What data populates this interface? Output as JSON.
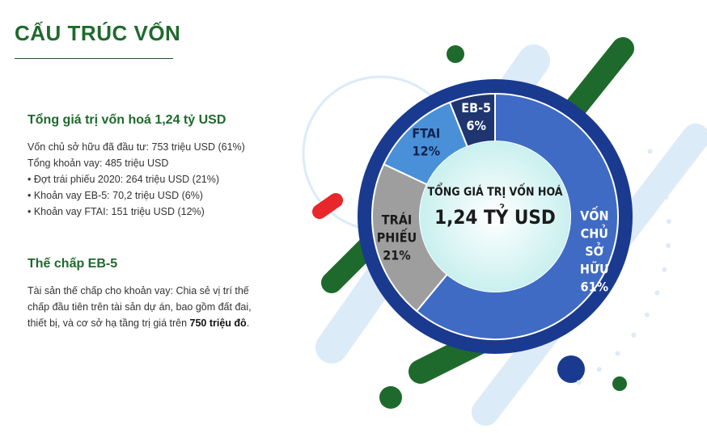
{
  "page": {
    "title": "CẤU TRÚC VỐN"
  },
  "capitalization": {
    "heading": "Tổng giá trị vốn hoá 1,24 tỷ USD",
    "lines": [
      "Vốn chủ sở hữu đã đầu tư: 753 triệu USD (61%)",
      "Tổng khoản vay: 485 triệu USD",
      "• Đợt trái phiếu 2020: 264 triệu USD (21%)",
      "• Khoản vay EB-5: 70,2 triệu USD (6%)",
      "• Khoản vay FTAI: 151 triệu USD (12%)"
    ]
  },
  "collateral": {
    "heading": "Thế chấp EB-5",
    "text_before": "Tài sản thế chấp cho khoản vay: Chia sẻ vị trí thế chấp đầu tiên trên tài sản dự án, bao gồm đất đai, thiết bị, và cơ sở hạ tầng trị giá trên ",
    "text_bold": "750 triệu đô",
    "text_after": "."
  },
  "colors": {
    "brand_green": "#1e6a2c",
    "navy": "#1a3a8f",
    "equity_blue": "#3f6bc4",
    "bonds_gray": "#9e9e9e",
    "ftai_blue": "#4a90d9",
    "eb5_navy": "#1e3570",
    "center_teal": "#c9f0ef",
    "accent_red": "#e8262c",
    "decor_light_blue": "#dcebf8"
  },
  "chart_data": {
    "type": "pie",
    "title": "",
    "center_label": [
      "TỔNG GIÁ TRỊ VỐN HOÁ",
      "1,24 TỶ USD"
    ],
    "slices": [
      {
        "name": "VỐN CHỦ SỞ HỮU",
        "label_lines": [
          "VỐN",
          "CHỦ",
          "SỞ",
          "HỮU",
          "61%"
        ],
        "value": 61,
        "color": "#3f6bc4"
      },
      {
        "name": "TRÁI PHIẾU",
        "label_lines": [
          "TRÁI",
          "PHIẾU",
          "21%"
        ],
        "value": 21,
        "color": "#9e9e9e"
      },
      {
        "name": "FTAI",
        "label_lines": [
          "FTAI",
          "12%"
        ],
        "value": 12,
        "color": "#4a90d9"
      },
      {
        "name": "EB-5",
        "label_lines": [
          "EB-5",
          "6%"
        ],
        "value": 6,
        "color": "#1e3570"
      }
    ]
  }
}
